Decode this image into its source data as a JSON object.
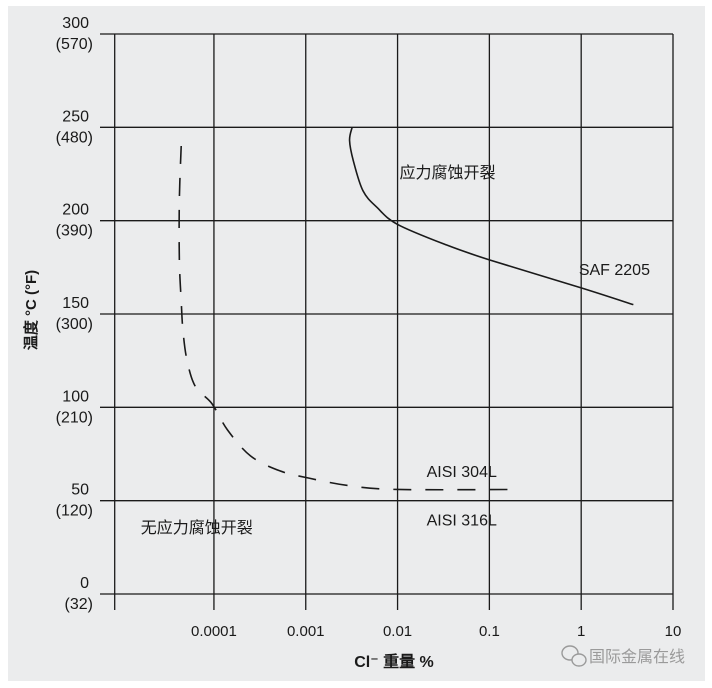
{
  "chart_data": {
    "type": "line",
    "title": "",
    "xlabel": "Cl⁻ 重量 %",
    "ylabel": "温度 °C (°F)",
    "x_scale": "log",
    "xlim": [
      8.3e-06,
      10
    ],
    "ylim": [
      0,
      300
    ],
    "grid": true,
    "x_ticks": [
      {
        "value": 0.0001,
        "label": "0.0001"
      },
      {
        "value": 0.001,
        "label": "0.001"
      },
      {
        "value": 0.01,
        "label": "0.01"
      },
      {
        "value": 0.1,
        "label": "0.1"
      },
      {
        "value": 1,
        "label": "1"
      },
      {
        "value": 10,
        "label": "10"
      }
    ],
    "y_ticks": [
      {
        "value": 0,
        "label": "0",
        "label2": "(32)"
      },
      {
        "value": 50,
        "label": "50",
        "label2": "(120)"
      },
      {
        "value": 100,
        "label": "100",
        "label2": "(210)"
      },
      {
        "value": 150,
        "label": "150",
        "label2": "(300)"
      },
      {
        "value": 200,
        "label": "200",
        "label2": "(390)"
      },
      {
        "value": 250,
        "label": "250",
        "label2": "(480)"
      },
      {
        "value": 300,
        "label": "300",
        "label2": "(570)"
      }
    ],
    "series": [
      {
        "name": "SAF 2205",
        "style": "solid",
        "color": "#1a1a1a",
        "x": [
          0.0032,
          0.003,
          0.0033,
          0.0042,
          0.006,
          0.01,
          0.034,
          0.1,
          1,
          3.7
        ],
        "y": [
          250,
          243,
          232,
          216,
          207,
          198,
          187,
          179,
          164,
          155
        ]
      },
      {
        "name": "AISI 304L / AISI 316L",
        "style": "dashed",
        "color": "#1a1a1a",
        "x": [
          4.4e-05,
          4.2e-05,
          4.2e-05,
          4.4e-05,
          4.6e-05,
          5.1e-05,
          6.3e-05,
          9.5e-05,
          0.00014,
          0.00025,
          0.00052,
          0.0011,
          0.003,
          0.01,
          0.21
        ],
        "y": [
          240,
          211,
          179,
          157,
          141,
          125,
          111,
          102,
          88,
          74,
          66,
          62,
          58,
          56,
          56
        ]
      }
    ],
    "annotations": [
      {
        "text": "应力腐蚀开裂",
        "x": 0.035,
        "y": 226
      },
      {
        "text": "SAF 2205",
        "x": 2.3,
        "y": 174
      },
      {
        "text": "AISI 304L",
        "x": 0.05,
        "y": 66
      },
      {
        "text": "AISI 316L",
        "x": 0.05,
        "y": 40
      },
      {
        "text": "无应力腐蚀开裂",
        "x": 6.5e-05,
        "y": 36
      }
    ]
  },
  "watermark": {
    "text": "国际金属在线",
    "icon": "wechat-icon"
  },
  "colors": {
    "background": "#ebeced",
    "ink": "#1a1a1a",
    "watermark": "#9a9a9a"
  }
}
